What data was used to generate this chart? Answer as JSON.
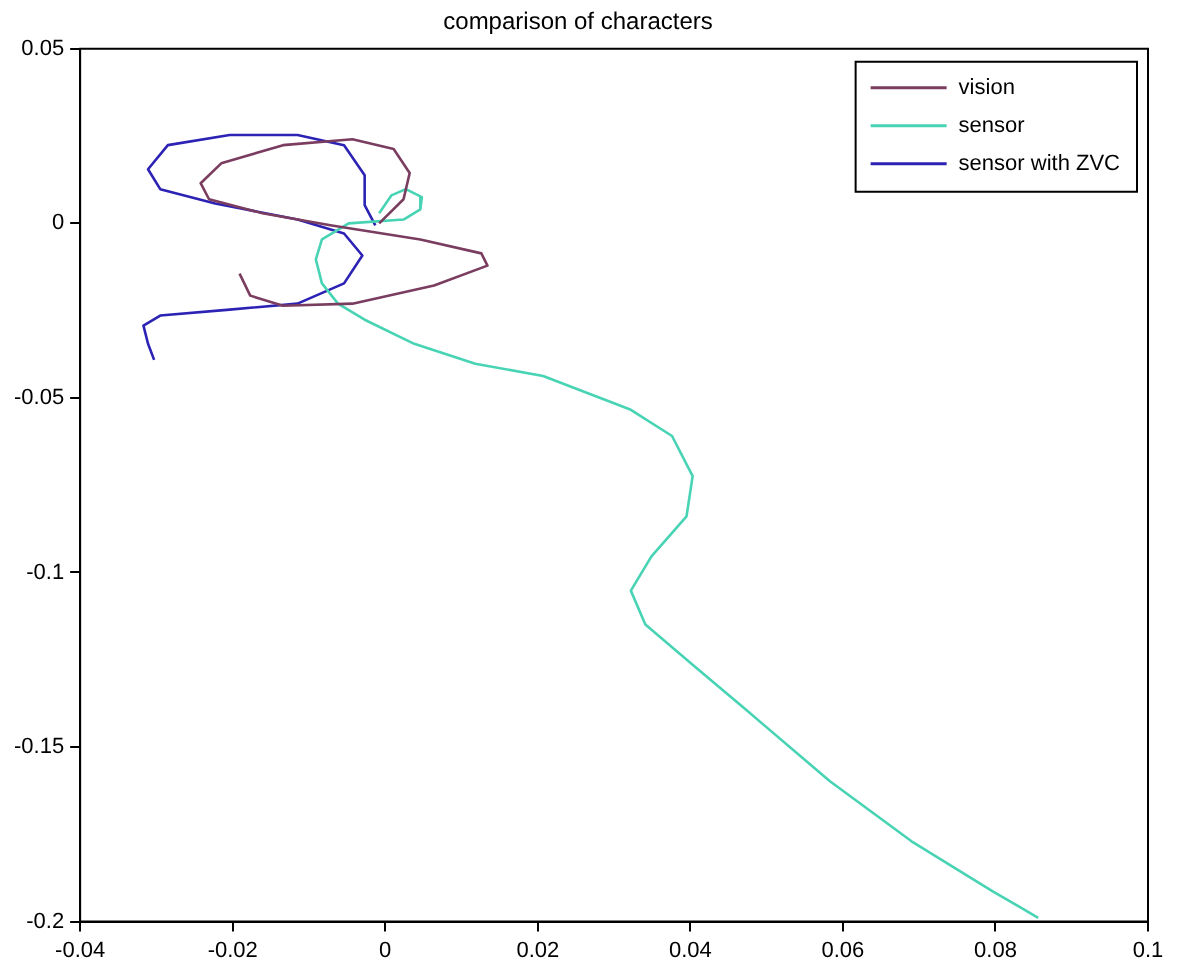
{
  "chart_data": {
    "type": "line",
    "title": "comparison of characters",
    "xlim": [
      -0.04,
      0.1
    ],
    "xticks": [
      -0.04,
      -0.02,
      0,
      0.02,
      0.04,
      0.06,
      0.08,
      0.1
    ],
    "ylim": [
      -0.2,
      0.05
    ],
    "yticks": [
      -0.2,
      -0.15,
      -0.1,
      -0.05,
      0,
      0.05
    ],
    "grid": false,
    "legend": "top right",
    "marker": "none",
    "line_style": "solid",
    "series": [
      {
        "name": "vision",
        "color": "#7a3d60",
        "x": [
          -0.0191,
          -0.0177,
          -0.0134,
          -0.0043,
          0.0064,
          0.0134,
          0.0126,
          0.0046,
          -0.007,
          -0.0161,
          -0.0231,
          -0.0242,
          -0.0215,
          -0.0134,
          -0.0043,
          0.0011,
          0.0032,
          0.0024,
          -0.0008
        ],
        "values": [
          -0.0144,
          -0.0207,
          -0.0236,
          -0.023,
          -0.0178,
          -0.0121,
          -0.0086,
          -0.0046,
          -0.0006,
          0.0029,
          0.0069,
          0.0115,
          0.0172,
          0.0224,
          0.0241,
          0.0213,
          0.0144,
          0.0069,
          0.0
        ]
      },
      {
        "name": "sensor",
        "color": "#48d4b4",
        "x": [
          -0.0008,
          0.0008,
          0.0027,
          0.0048,
          0.0046,
          0.0024,
          -0.0048,
          -0.0083,
          -0.0091,
          -0.0083,
          -0.0062,
          -0.0027,
          0.0038,
          0.0118,
          0.0207,
          0.0322,
          0.0376,
          0.0403,
          0.0395,
          0.0349,
          0.0322,
          0.0341,
          0.0403,
          0.0475,
          0.0583,
          0.069,
          0.0797,
          0.0856
        ],
        "values": [
          0.0029,
          0.008,
          0.0098,
          0.0075,
          0.004,
          0.0011,
          0.0,
          -0.0046,
          -0.0103,
          -0.0172,
          -0.023,
          -0.0276,
          -0.0345,
          -0.0402,
          -0.0437,
          -0.0534,
          -0.0609,
          -0.0724,
          -0.0839,
          -0.0954,
          -0.1052,
          -0.1149,
          -0.1264,
          -0.1397,
          -0.1598,
          -0.177,
          -0.1914,
          -0.1989
        ]
      },
      {
        "name": "sensor with ZVC",
        "color": "#2c22b4",
        "x": [
          -0.0013,
          -0.0027,
          -0.0027,
          -0.0054,
          -0.0115,
          -0.0204,
          -0.0285,
          -0.0311,
          -0.0295,
          -0.0223,
          -0.0115,
          -0.0054,
          -0.003,
          -0.0054,
          -0.0115,
          -0.0204,
          -0.0295,
          -0.0317,
          -0.0311,
          -0.0303
        ],
        "values": [
          -0.0006,
          0.0052,
          0.0138,
          0.0224,
          0.0253,
          0.0253,
          0.0224,
          0.0155,
          0.0098,
          0.0057,
          0.0011,
          -0.0029,
          -0.0092,
          -0.0172,
          -0.023,
          -0.0247,
          -0.0264,
          -0.0293,
          -0.0345,
          -0.0391
        ]
      }
    ]
  }
}
